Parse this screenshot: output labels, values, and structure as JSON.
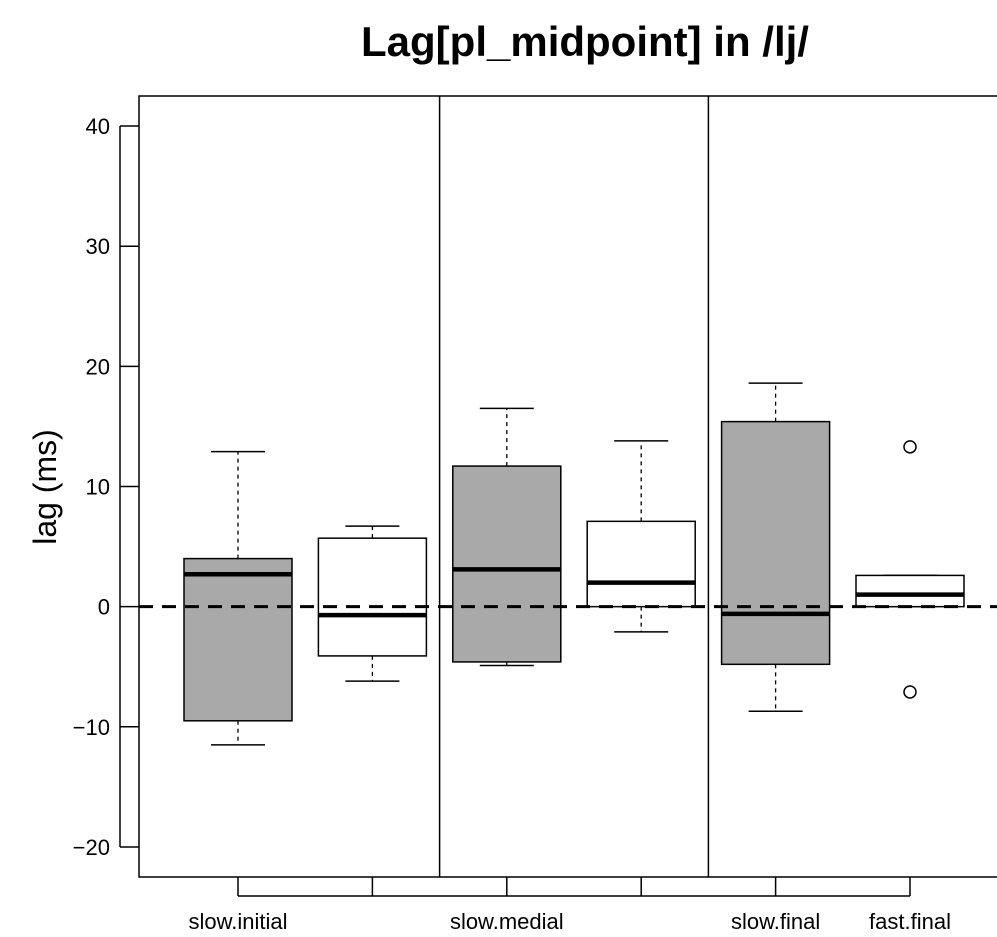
{
  "chart_data": {
    "type": "boxplot",
    "title": "Lag[pl_midpoint] in /lj/",
    "ylabel": "lag (ms)",
    "xlabel": "",
    "ylim": [
      -22.5,
      42.5
    ],
    "yticks": [
      -20,
      -10,
      0,
      10,
      20,
      30,
      40
    ],
    "ytick_labels": [
      "−20",
      "−10",
      "0",
      "10",
      "20",
      "30",
      "40"
    ],
    "reference_line": {
      "y": 0,
      "style": "dashed"
    },
    "panel_separators_after_box": [
      2,
      4
    ],
    "categories": [
      "slow.initial",
      "",
      "slow.medial",
      "",
      "slow.final",
      "fast.final"
    ],
    "boxes": [
      {
        "label": "slow.initial",
        "fill": "#a9a9a9",
        "whisker_low": -11.5,
        "q1": -9.5,
        "median": 2.7,
        "q3": 4.0,
        "whisker_high": 12.9,
        "outliers": []
      },
      {
        "label": "",
        "fill": "#ffffff",
        "whisker_low": -6.2,
        "q1": -4.1,
        "median": -0.7,
        "q3": 5.7,
        "whisker_high": 6.7,
        "outliers": []
      },
      {
        "label": "slow.medial",
        "fill": "#a9a9a9",
        "whisker_low": -4.9,
        "q1": -4.6,
        "median": 3.1,
        "q3": 11.7,
        "whisker_high": 16.5,
        "outliers": []
      },
      {
        "label": "",
        "fill": "#ffffff",
        "whisker_low": -2.1,
        "q1": 0.0,
        "median": 2.0,
        "q3": 7.1,
        "whisker_high": 13.8,
        "outliers": []
      },
      {
        "label": "slow.final",
        "fill": "#a9a9a9",
        "whisker_low": -8.7,
        "q1": -4.8,
        "median": -0.6,
        "q3": 15.4,
        "whisker_high": 18.6,
        "outliers": []
      },
      {
        "label": "fast.final",
        "fill": "#ffffff",
        "whisker_low": 0.0,
        "q1": 0.0,
        "median": 1.0,
        "q3": 2.6,
        "whisker_high": 2.6,
        "outliers": [
          13.3,
          -7.1
        ]
      }
    ]
  }
}
